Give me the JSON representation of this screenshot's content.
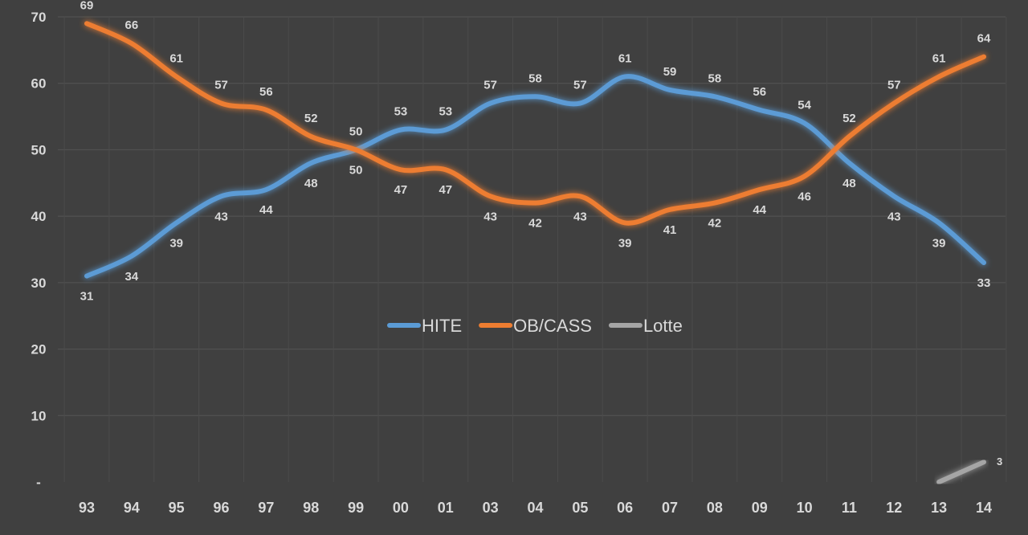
{
  "chart_data": {
    "type": "line",
    "categories": [
      "93",
      "94",
      "95",
      "96",
      "97",
      "98",
      "99",
      "00",
      "01",
      "03",
      "04",
      "05",
      "06",
      "07",
      "08",
      "09",
      "10",
      "11",
      "12",
      "13",
      "14"
    ],
    "series": [
      {
        "name": "HITE",
        "color": "#5b9bd5",
        "values": [
          31,
          34,
          39,
          43,
          44,
          48,
          50,
          53,
          53,
          57,
          58,
          57,
          61,
          59,
          58,
          56,
          54,
          48,
          43,
          39,
          33
        ]
      },
      {
        "name": "OB/CASS",
        "color": "#ed7d31",
        "values": [
          69,
          66,
          61,
          57,
          56,
          52,
          50,
          47,
          47,
          43,
          42,
          43,
          39,
          41,
          42,
          44,
          46,
          52,
          57,
          61,
          64
        ]
      },
      {
        "name": "Lotte",
        "color": "#a5a5a5",
        "values": [
          null,
          null,
          null,
          null,
          null,
          null,
          null,
          null,
          null,
          null,
          null,
          null,
          null,
          null,
          null,
          null,
          null,
          null,
          null,
          0,
          3
        ]
      }
    ],
    "yticks": [
      "-",
      "10",
      "20",
      "30",
      "40",
      "50",
      "60",
      "70"
    ],
    "ylim": [
      0,
      70
    ],
    "grid": true,
    "legend": "center",
    "data_labels": true,
    "background": "#404040"
  }
}
